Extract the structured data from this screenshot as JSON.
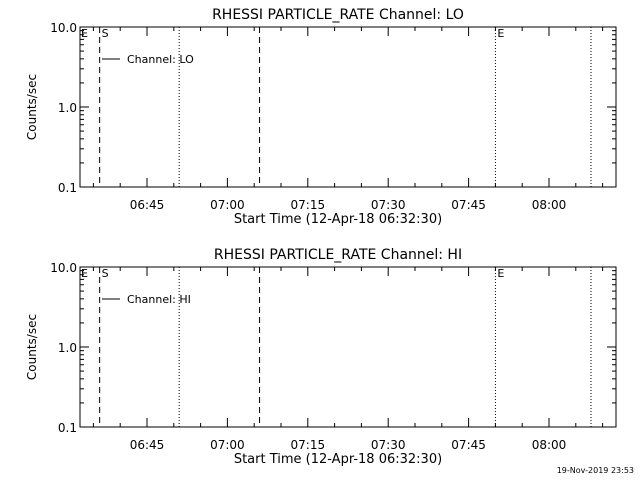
{
  "footer": {
    "timestamp": "19-Nov-2019 23:53"
  },
  "chart_data": [
    {
      "type": "line",
      "title": "RHESSI PARTICLE_RATE Channel: LO",
      "xlabel": "Start Time (12-Apr-18 06:32:30)",
      "ylabel": "Counts/sec",
      "yscale": "log",
      "ylim": [
        0.1,
        10.0
      ],
      "xlim": [
        "06:32:30",
        "08:12:30"
      ],
      "xticks": [
        "06:45",
        "07:00",
        "07:15",
        "07:30",
        "07:45",
        "08:00"
      ],
      "yticks": [
        "0.1",
        "1.0",
        "10.0"
      ],
      "legend_placement": "top-left",
      "series": [
        {
          "name": "Channel: LO",
          "x": [],
          "y": []
        }
      ],
      "vlines": [
        {
          "x": "06:36:10",
          "style": "dashed",
          "label": "S"
        },
        {
          "x": "06:51:00",
          "style": "dotted",
          "label": ""
        },
        {
          "x": "07:06:00",
          "style": "dashed",
          "label": ""
        },
        {
          "x": "07:50:00",
          "style": "dotted",
          "label": "E"
        },
        {
          "x": "08:07:50",
          "style": "dotted",
          "label": ""
        }
      ],
      "corner_label": "E"
    },
    {
      "type": "line",
      "title": "RHESSI PARTICLE_RATE Channel: HI",
      "xlabel": "Start Time (12-Apr-18 06:32:30)",
      "ylabel": "Counts/sec",
      "yscale": "log",
      "ylim": [
        0.1,
        10.0
      ],
      "xlim": [
        "06:32:30",
        "08:12:30"
      ],
      "xticks": [
        "06:45",
        "07:00",
        "07:15",
        "07:30",
        "07:45",
        "08:00"
      ],
      "yticks": [
        "0.1",
        "1.0",
        "10.0"
      ],
      "legend_placement": "top-left",
      "series": [
        {
          "name": "Channel: HI",
          "x": [],
          "y": []
        }
      ],
      "vlines": [
        {
          "x": "06:36:10",
          "style": "dashed",
          "label": "S"
        },
        {
          "x": "06:51:00",
          "style": "dotted",
          "label": ""
        },
        {
          "x": "07:06:00",
          "style": "dashed",
          "label": ""
        },
        {
          "x": "07:50:00",
          "style": "dotted",
          "label": "E"
        },
        {
          "x": "08:07:50",
          "style": "dotted",
          "label": ""
        }
      ],
      "corner_label": "E"
    }
  ]
}
